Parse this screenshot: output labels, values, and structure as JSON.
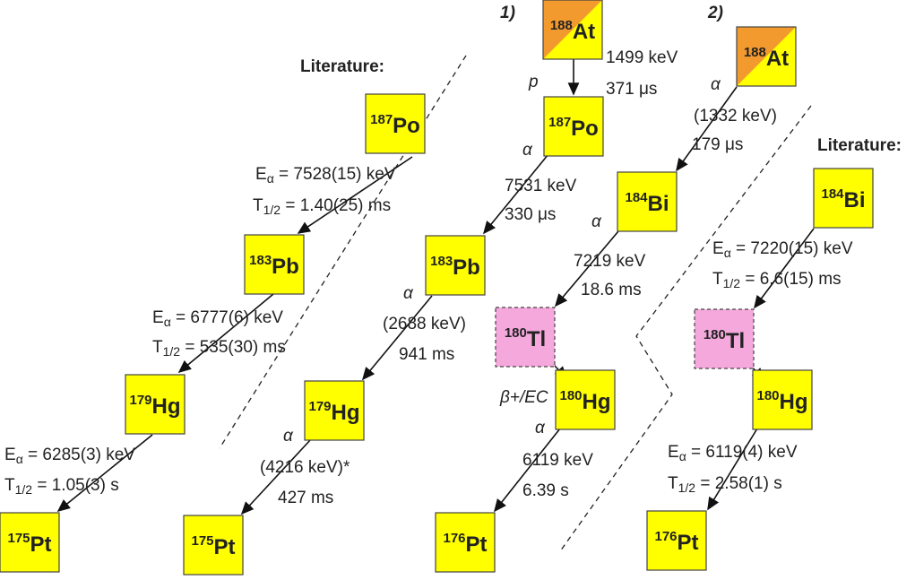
{
  "headings": [
    "Literature:",
    "1)",
    "2)",
    "Literature:"
  ],
  "nodes": [
    {
      "mass": "187",
      "symbol": "Po"
    },
    {
      "mass": "183",
      "symbol": "Pb"
    },
    {
      "mass": "179",
      "symbol": "Hg"
    },
    {
      "mass": "175",
      "symbol": "Pt"
    },
    {
      "mass": "183",
      "symbol": "Pb"
    },
    {
      "mass": "179",
      "symbol": "Hg"
    },
    {
      "mass": "175",
      "symbol": "Pt"
    },
    {
      "mass": "188",
      "symbol": "At"
    },
    {
      "mass": "187",
      "symbol": "Po"
    },
    {
      "mass": "184",
      "symbol": "Bi"
    },
    {
      "mass": "180",
      "symbol": "Tl"
    },
    {
      "mass": "180",
      "symbol": "Hg"
    },
    {
      "mass": "176",
      "symbol": "Pt"
    },
    {
      "mass": "188",
      "symbol": "At"
    },
    {
      "mass": "184",
      "symbol": "Bi"
    },
    {
      "mass": "180",
      "symbol": "Tl"
    },
    {
      "mass": "180",
      "symbol": "Hg"
    },
    {
      "mass": "176",
      "symbol": "Pt"
    }
  ],
  "labels": [
    {
      "main": "E",
      "sub": "α",
      "text": " = 7528(15) keV"
    },
    {
      "main": "T",
      "sub": "1/2",
      "text": " = 1.40(25) ms"
    },
    {
      "main": "E",
      "sub": "α",
      "text": " = 6777(6) keV"
    },
    {
      "main": "T",
      "sub": "1/2",
      "text": " = 535(30) ms"
    },
    {
      "main": "E",
      "sub": "α",
      "text": " = 6285(3) keV"
    },
    {
      "main": "T",
      "sub": "1/2",
      "text": " = 1.05(3) s"
    },
    {
      "text": "α"
    },
    {
      "text": "7531 keV"
    },
    {
      "text": "330 μs"
    },
    {
      "text": "α"
    },
    {
      "text": "(2688 keV)"
    },
    {
      "text": "941 ms"
    },
    {
      "text": "α"
    },
    {
      "text": "(4216 keV)*"
    },
    {
      "text": "427 ms"
    },
    {
      "text": "p"
    },
    {
      "text": "1499 keV"
    },
    {
      "text": "371 μs"
    },
    {
      "text": "α"
    },
    {
      "text": "7219 keV"
    },
    {
      "text": "18.6 ms"
    },
    {
      "text": "β+/EC"
    },
    {
      "text": "α"
    },
    {
      "text": "6119 keV"
    },
    {
      "text": "6.39 s"
    },
    {
      "text": "α"
    },
    {
      "text": "(1332 keV)"
    },
    {
      "text": "179 μs"
    },
    {
      "main": "E",
      "sub": "α",
      "text": " = 7220(15) keV"
    },
    {
      "main": "T",
      "sub": "1/2",
      "text": " = 6.6(15) ms"
    },
    {
      "main": "E",
      "sub": "α",
      "text": " = 6119(4) keV"
    },
    {
      "main": "T",
      "sub": "1/2",
      "text": " = 2.58(1) s"
    }
  ]
}
